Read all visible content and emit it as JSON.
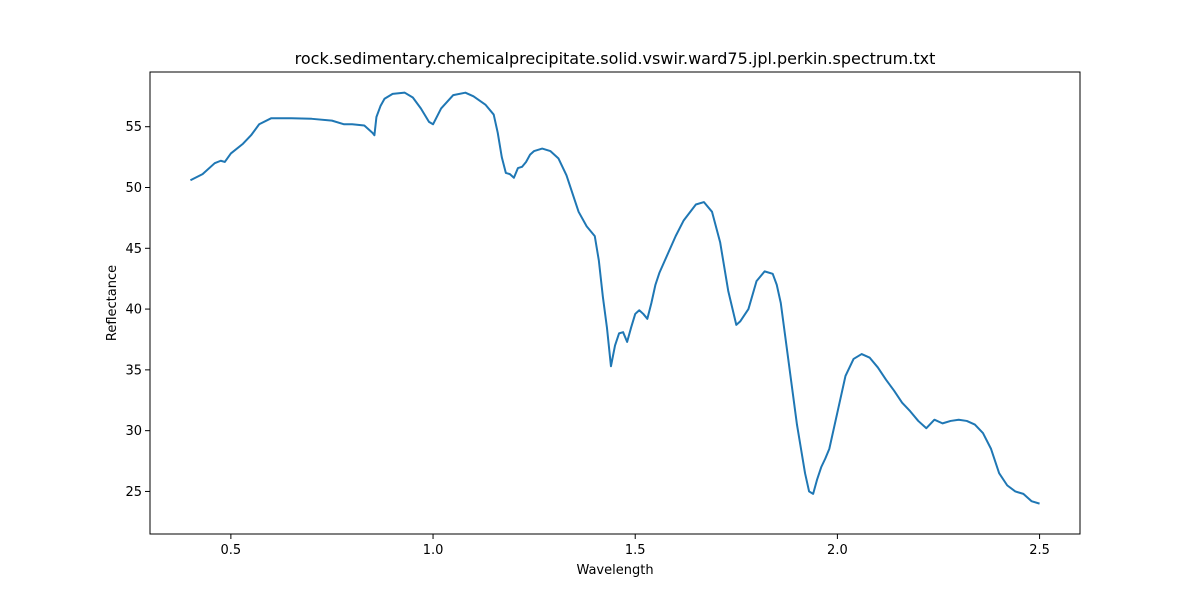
{
  "chart_data": {
    "type": "line",
    "title": "rock.sedimentary.chemicalprecipitate.solid.vswir.ward75.jpl.perkin.spectrum.txt",
    "xlabel": "Wavelength",
    "ylabel": "Reflectance",
    "xlim": [
      0.3,
      2.6
    ],
    "ylim": [
      21.5,
      59.5
    ],
    "xticks": [
      0.5,
      1.0,
      1.5,
      2.0,
      2.5
    ],
    "xtick_labels": [
      "0.5",
      "1.0",
      "1.5",
      "2.0",
      "2.5"
    ],
    "yticks": [
      25,
      30,
      35,
      40,
      45,
      50,
      55
    ],
    "ytick_labels": [
      "25",
      "30",
      "35",
      "40",
      "45",
      "50",
      "55"
    ],
    "grid": false,
    "line_color": "#1f77b4",
    "series": [
      {
        "x": [
          0.4,
          0.43,
          0.46,
          0.475,
          0.485,
          0.5,
          0.53,
          0.55,
          0.57,
          0.6,
          0.65,
          0.7,
          0.75,
          0.78,
          0.8,
          0.83,
          0.85,
          0.855,
          0.86,
          0.87,
          0.88,
          0.9,
          0.93,
          0.95,
          0.97,
          0.99,
          1.0,
          1.02,
          1.05,
          1.08,
          1.1,
          1.13,
          1.15,
          1.16,
          1.17,
          1.18,
          1.19,
          1.2,
          1.21,
          1.22,
          1.23,
          1.24,
          1.25,
          1.27,
          1.29,
          1.31,
          1.33,
          1.35,
          1.36,
          1.38,
          1.4,
          1.41,
          1.42,
          1.43,
          1.44,
          1.45,
          1.46,
          1.47,
          1.48,
          1.49,
          1.5,
          1.51,
          1.52,
          1.53,
          1.54,
          1.55,
          1.56,
          1.58,
          1.6,
          1.62,
          1.65,
          1.67,
          1.69,
          1.71,
          1.73,
          1.75,
          1.76,
          1.78,
          1.8,
          1.82,
          1.84,
          1.85,
          1.86,
          1.87,
          1.88,
          1.89,
          1.9,
          1.91,
          1.92,
          1.93,
          1.94,
          1.95,
          1.96,
          1.97,
          1.98,
          2.0,
          2.02,
          2.04,
          2.06,
          2.08,
          2.1,
          2.12,
          2.14,
          2.16,
          2.18,
          2.2,
          2.22,
          2.24,
          2.26,
          2.28,
          2.3,
          2.32,
          2.34,
          2.36,
          2.38,
          2.4,
          2.42,
          2.44,
          2.46,
          2.48,
          2.5
        ],
        "y": [
          50.6,
          51.1,
          52.0,
          52.2,
          52.1,
          52.8,
          53.6,
          54.3,
          55.2,
          55.7,
          55.7,
          55.65,
          55.5,
          55.2,
          55.2,
          55.1,
          54.5,
          54.3,
          55.8,
          56.7,
          57.3,
          57.7,
          57.8,
          57.4,
          56.5,
          55.4,
          55.2,
          56.5,
          57.6,
          57.8,
          57.5,
          56.8,
          56.0,
          54.5,
          52.5,
          51.2,
          51.1,
          50.8,
          51.6,
          51.7,
          52.1,
          52.7,
          53.0,
          53.2,
          53.0,
          52.4,
          51.0,
          49.0,
          48.0,
          46.8,
          46.0,
          44.0,
          41.0,
          38.5,
          35.3,
          37.0,
          38.0,
          38.1,
          37.3,
          38.5,
          39.6,
          39.9,
          39.6,
          39.2,
          40.5,
          42.0,
          43.0,
          44.5,
          46.0,
          47.3,
          48.6,
          48.8,
          48.0,
          45.5,
          41.5,
          38.7,
          39.0,
          40.0,
          42.3,
          43.1,
          42.9,
          42.0,
          40.5,
          38.0,
          35.5,
          33.0,
          30.5,
          28.5,
          26.5,
          25.0,
          24.8,
          26.0,
          27.0,
          27.7,
          28.5,
          31.5,
          34.5,
          35.9,
          36.3,
          36.0,
          35.2,
          34.2,
          33.3,
          32.3,
          31.6,
          30.8,
          30.2,
          30.9,
          30.6,
          30.8,
          30.9,
          30.8,
          30.5,
          29.8,
          28.5,
          26.5,
          25.5,
          25.0,
          24.8,
          24.2,
          24.0
        ]
      }
    ]
  }
}
